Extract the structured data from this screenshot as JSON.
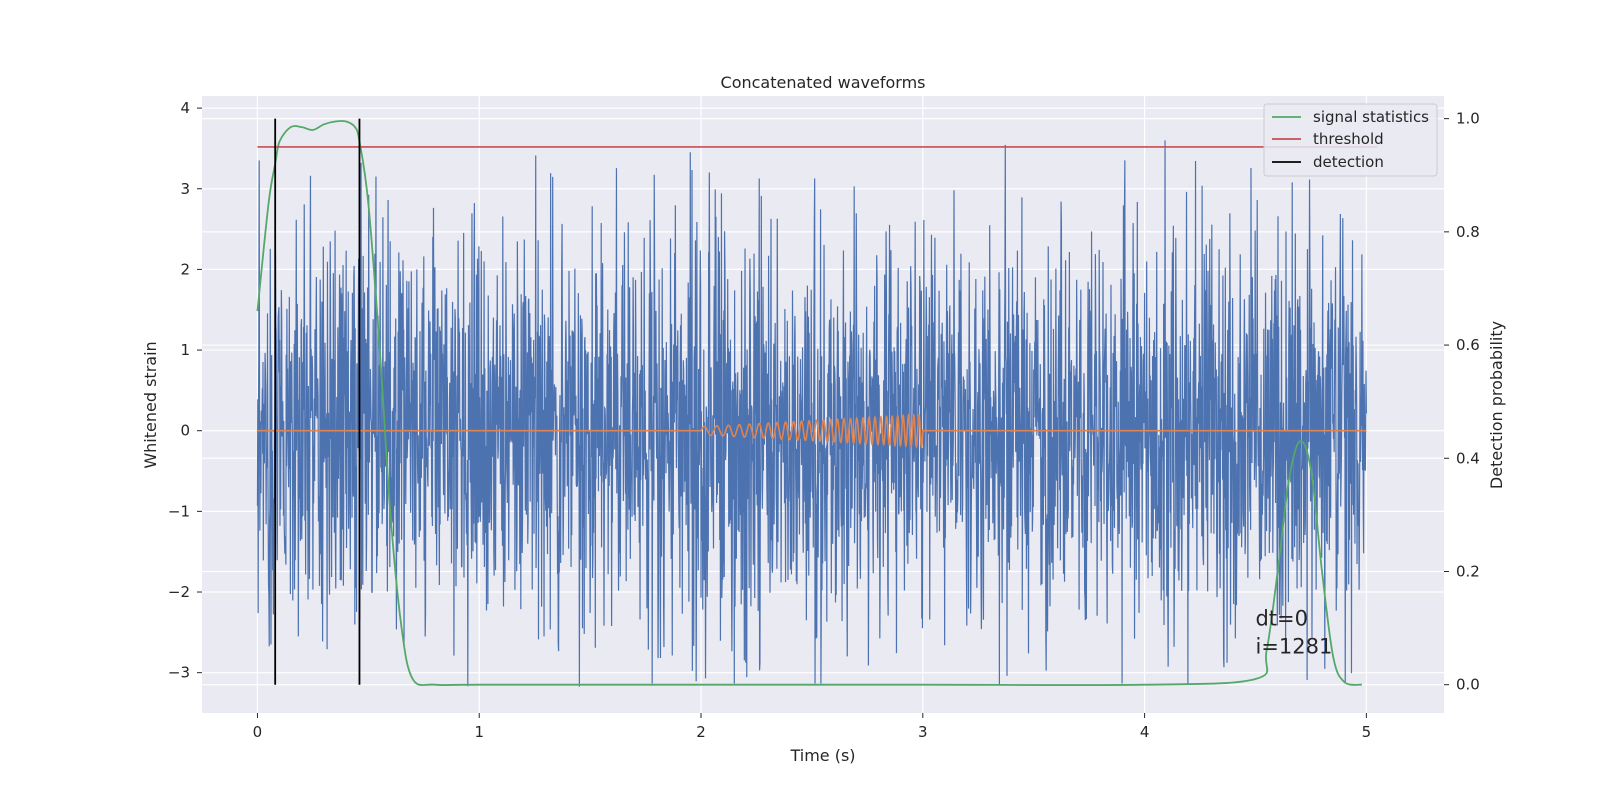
{
  "chart_data": {
    "type": "line",
    "title": "Concatenated waveforms",
    "xlabel": "Time (s)",
    "ylabel": "Whitened strain",
    "ylabel_right": "Detection probability",
    "xlim": [
      -0.25,
      5.35
    ],
    "ylim": [
      -3.5,
      4.15
    ],
    "ylim_right": [
      -0.05,
      1.04
    ],
    "xticks": [
      0,
      1,
      2,
      3,
      4,
      5
    ],
    "yticks": [
      -3,
      -2,
      -1,
      0,
      1,
      2,
      3,
      4
    ],
    "yticks_right": [
      0.0,
      0.2,
      0.4,
      0.6,
      0.8,
      1.0
    ],
    "grid": true,
    "legend_position": "top-right",
    "series": [
      {
        "kind": "whitened-noise",
        "axis": "left",
        "color": "#4c72b0",
        "x_range": [
          0,
          5
        ],
        "envelope_max": 3.79,
        "envelope_min": -3.3,
        "typical_amplitude": 1.2
      },
      {
        "kind": "injected-chirp",
        "axis": "left",
        "color": "#dd8452",
        "x_range": [
          0,
          5
        ],
        "chirp_x_range": [
          2,
          3
        ],
        "amplitude_start": 0.05,
        "amplitude_end": 0.2,
        "cycles": 30
      },
      {
        "name": "signal statistics",
        "axis": "right",
        "color": "#55a868",
        "x": [
          0,
          0.05,
          0.08,
          0.1,
          0.15,
          0.2,
          0.25,
          0.3,
          0.35,
          0.4,
          0.44,
          0.46,
          0.5,
          0.55,
          0.6,
          0.65,
          0.7,
          0.8,
          1.0,
          2.0,
          3.0,
          4.0,
          4.5,
          4.55,
          4.6,
          4.65,
          4.7,
          4.75,
          4.8,
          4.85,
          4.9,
          4.98
        ],
        "values": [
          0.66,
          0.85,
          0.92,
          0.96,
          0.985,
          0.985,
          0.98,
          0.99,
          0.995,
          0.995,
          0.985,
          0.96,
          0.85,
          0.6,
          0.3,
          0.1,
          0.01,
          0.0,
          0.0,
          0.0,
          0.0,
          0.0,
          0.01,
          0.06,
          0.2,
          0.36,
          0.43,
          0.38,
          0.2,
          0.05,
          0.005,
          0.0
        ]
      },
      {
        "name": "threshold",
        "axis": "right",
        "color": "#c44e52",
        "x": [
          0,
          5.05
        ],
        "values": [
          0.95,
          0.95
        ]
      },
      {
        "name": "detection",
        "axis": "right",
        "color": "#000000",
        "vlines_x": [
          0.08,
          0.46
        ],
        "vline_range": [
          0.0,
          1.0
        ]
      }
    ],
    "annotations": [
      {
        "text": "dt=0",
        "x": 4.5,
        "y": 0.105,
        "axis": "right"
      },
      {
        "text": "i=1281",
        "x": 4.5,
        "y": 0.055,
        "axis": "right"
      }
    ]
  }
}
